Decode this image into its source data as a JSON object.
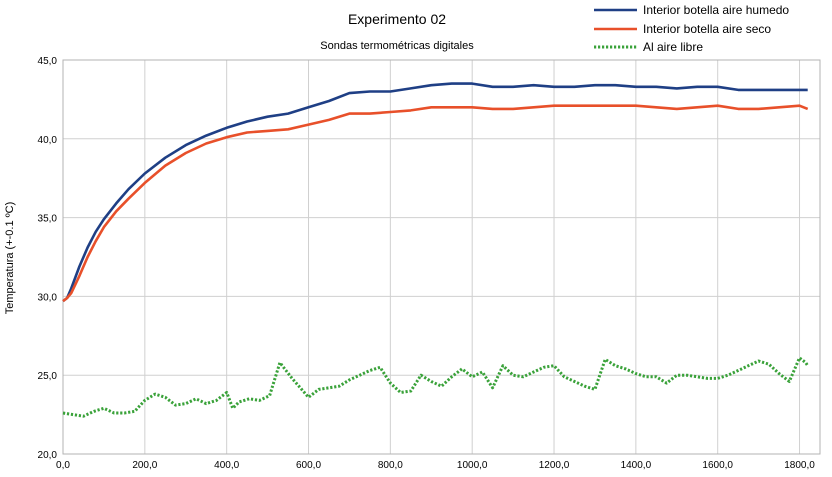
{
  "chart_data": {
    "type": "line",
    "title": "Experimento 02",
    "subtitle": "Sondas termométricas digitales",
    "xlabel": "",
    "ylabel": "Temperatura (+-0.1 ºC)",
    "xlim": [
      0,
      1850
    ],
    "ylim": [
      20.0,
      45.0
    ],
    "grid": true,
    "legend_position": "top-right",
    "x_ticks": [
      0,
      200,
      400,
      600,
      800,
      1000,
      1200,
      1400,
      1600,
      1800
    ],
    "x_tick_labels": [
      "0,0",
      "200,0",
      "400,0",
      "600,0",
      "800,0",
      "1000,0",
      "1200,0",
      "1400,0",
      "1600,0",
      "1800,0"
    ],
    "y_ticks": [
      20,
      25,
      30,
      35,
      40,
      45
    ],
    "y_tick_labels": [
      "20,0",
      "25,0",
      "30,0",
      "35,0",
      "40,0",
      "45,0"
    ],
    "series": [
      {
        "name": "Interior botella aire humedo",
        "color": "#1f3f85",
        "style": "solid",
        "x": [
          0,
          10,
          20,
          40,
          60,
          80,
          100,
          130,
          160,
          200,
          250,
          300,
          350,
          400,
          450,
          500,
          550,
          600,
          650,
          700,
          750,
          800,
          850,
          900,
          950,
          1000,
          1050,
          1100,
          1150,
          1200,
          1250,
          1300,
          1350,
          1400,
          1450,
          1500,
          1550,
          1600,
          1650,
          1700,
          1750,
          1800,
          1820
        ],
        "values": [
          29.7,
          29.9,
          30.5,
          31.9,
          33.1,
          34.1,
          34.9,
          35.9,
          36.8,
          37.8,
          38.8,
          39.6,
          40.2,
          40.7,
          41.1,
          41.4,
          41.6,
          42.0,
          42.4,
          42.9,
          43.0,
          43.0,
          43.2,
          43.4,
          43.5,
          43.5,
          43.3,
          43.3,
          43.4,
          43.3,
          43.3,
          43.4,
          43.4,
          43.3,
          43.3,
          43.2,
          43.3,
          43.3,
          43.1,
          43.1,
          43.1,
          43.1,
          43.1
        ]
      },
      {
        "name": "Interior botella aire seco",
        "color": "#e8502a",
        "style": "solid",
        "x": [
          0,
          10,
          20,
          40,
          60,
          80,
          100,
          130,
          160,
          200,
          250,
          300,
          350,
          400,
          450,
          500,
          550,
          600,
          650,
          700,
          750,
          800,
          850,
          900,
          950,
          1000,
          1050,
          1100,
          1150,
          1200,
          1250,
          1300,
          1350,
          1400,
          1450,
          1500,
          1550,
          1600,
          1650,
          1700,
          1750,
          1800,
          1820
        ],
        "values": [
          29.7,
          29.9,
          30.2,
          31.3,
          32.5,
          33.5,
          34.4,
          35.4,
          36.2,
          37.2,
          38.3,
          39.1,
          39.7,
          40.1,
          40.4,
          40.5,
          40.6,
          40.9,
          41.2,
          41.6,
          41.6,
          41.7,
          41.8,
          42.0,
          42.0,
          42.0,
          41.9,
          41.9,
          42.0,
          42.1,
          42.1,
          42.1,
          42.1,
          42.1,
          42.0,
          41.9,
          42.0,
          42.1,
          41.9,
          41.9,
          42.0,
          42.1,
          41.9
        ]
      },
      {
        "name": "Al aire libre",
        "color": "#3aa23a",
        "style": "dotted",
        "x": [
          0,
          25,
          50,
          75,
          100,
          125,
          150,
          175,
          200,
          225,
          250,
          275,
          300,
          325,
          350,
          375,
          400,
          415,
          430,
          455,
          480,
          505,
          530,
          545,
          560,
          580,
          600,
          625,
          650,
          675,
          700,
          725,
          750,
          775,
          800,
          825,
          850,
          875,
          900,
          925,
          950,
          975,
          1000,
          1025,
          1050,
          1075,
          1100,
          1125,
          1150,
          1175,
          1200,
          1225,
          1250,
          1275,
          1300,
          1325,
          1350,
          1375,
          1400,
          1425,
          1450,
          1475,
          1500,
          1525,
          1550,
          1575,
          1600,
          1625,
          1650,
          1675,
          1700,
          1725,
          1750,
          1775,
          1800,
          1815,
          1820
        ],
        "values": [
          22.6,
          22.5,
          22.4,
          22.7,
          22.9,
          22.6,
          22.6,
          22.7,
          23.4,
          23.8,
          23.6,
          23.1,
          23.2,
          23.5,
          23.2,
          23.4,
          23.9,
          22.9,
          23.3,
          23.5,
          23.4,
          23.7,
          25.8,
          25.3,
          24.8,
          24.2,
          23.6,
          24.1,
          24.2,
          24.3,
          24.7,
          25.0,
          25.3,
          25.5,
          24.5,
          23.9,
          24.0,
          25.0,
          24.6,
          24.3,
          24.9,
          25.4,
          24.9,
          25.2,
          24.2,
          25.6,
          25.0,
          24.9,
          25.2,
          25.5,
          25.6,
          24.9,
          24.6,
          24.3,
          24.1,
          26.0,
          25.6,
          25.4,
          25.1,
          24.9,
          24.9,
          24.5,
          25.0,
          25.0,
          24.9,
          24.8,
          24.8,
          25.0,
          25.3,
          25.6,
          25.9,
          25.7,
          25.1,
          24.6,
          26.1,
          25.8,
          25.6
        ]
      }
    ]
  }
}
